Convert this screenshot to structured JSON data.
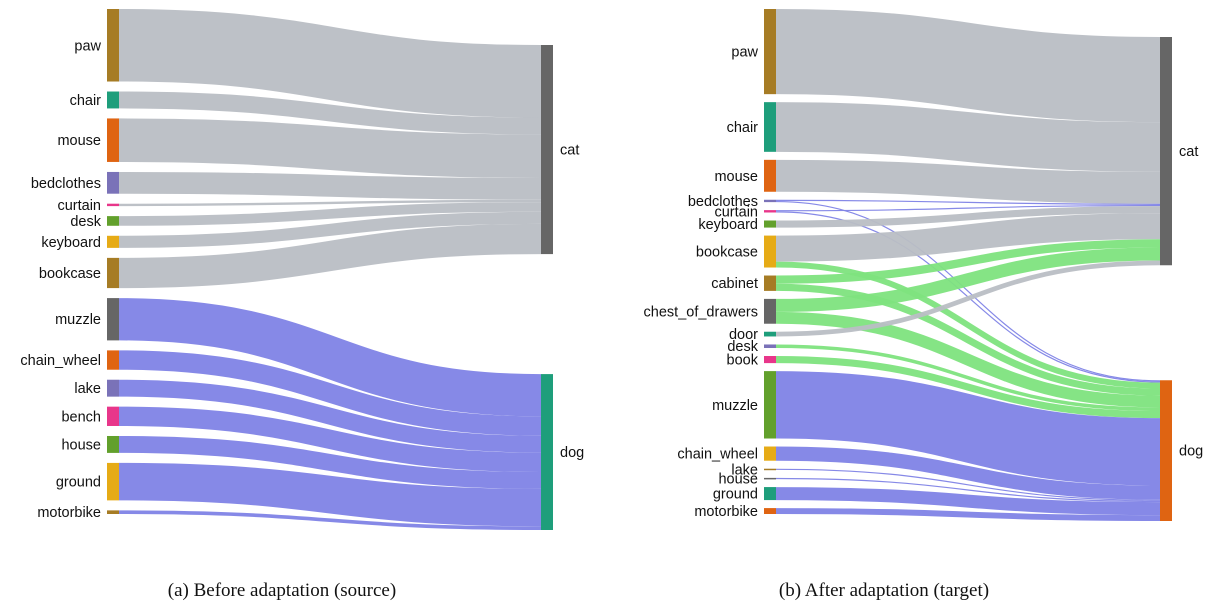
{
  "panels": [
    {
      "caption": "(a) Before adaptation (source)",
      "sources": [
        {
          "label": "paw",
          "color": "#a67c25"
        },
        {
          "label": "chair",
          "color": "#1e9e7b"
        },
        {
          "label": "mouse",
          "color": "#df6412"
        },
        {
          "label": "bedclothes",
          "color": "#7a72b8"
        },
        {
          "label": "curtain",
          "color": "#e8368a"
        },
        {
          "label": "desk",
          "color": "#62a02c"
        },
        {
          "label": "keyboard",
          "color": "#e6ab16"
        },
        {
          "label": "bookcase",
          "color": "#a67c25"
        },
        {
          "label": "muzzle",
          "color": "#666666"
        },
        {
          "label": "chain_wheel",
          "color": "#df6412"
        },
        {
          "label": "lake",
          "color": "#7a72b8"
        },
        {
          "label": "bench",
          "color": "#e8368a"
        },
        {
          "label": "house",
          "color": "#62a02c"
        },
        {
          "label": "ground",
          "color": "#e6ab16"
        },
        {
          "label": "motorbike",
          "color": "#a67c25"
        }
      ],
      "targets": [
        {
          "label": "cat",
          "color": "#666666"
        },
        {
          "label": "dog",
          "color": "#1e9e7b"
        }
      ],
      "links": [
        {
          "source": "paw",
          "target": "cat",
          "value": 60
        },
        {
          "source": "chair",
          "target": "cat",
          "value": 14
        },
        {
          "source": "mouse",
          "target": "cat",
          "value": 36
        },
        {
          "source": "bedclothes",
          "target": "cat",
          "value": 18
        },
        {
          "source": "curtain",
          "target": "cat",
          "value": 2
        },
        {
          "source": "desk",
          "target": "cat",
          "value": 8
        },
        {
          "source": "keyboard",
          "target": "cat",
          "value": 10
        },
        {
          "source": "bookcase",
          "target": "cat",
          "value": 25
        },
        {
          "source": "muzzle",
          "target": "dog",
          "value": 35
        },
        {
          "source": "chain_wheel",
          "target": "dog",
          "value": 16
        },
        {
          "source": "lake",
          "target": "dog",
          "value": 14
        },
        {
          "source": "bench",
          "target": "dog",
          "value": 16
        },
        {
          "source": "house",
          "target": "dog",
          "value": 14
        },
        {
          "source": "ground",
          "target": "dog",
          "value": 31
        },
        {
          "source": "motorbike",
          "target": "dog",
          "value": 3
        }
      ]
    },
    {
      "caption": "(b) After adaptation (target)",
      "sources": [
        {
          "label": "paw",
          "color": "#a67c25"
        },
        {
          "label": "chair",
          "color": "#1e9e7b"
        },
        {
          "label": "mouse",
          "color": "#df6412"
        },
        {
          "label": "bedclothes",
          "color": "#7a72b8"
        },
        {
          "label": "curtain",
          "color": "#e8368a"
        },
        {
          "label": "keyboard",
          "color": "#62a02c"
        },
        {
          "label": "bookcase",
          "color": "#e6ab16"
        },
        {
          "label": "cabinet",
          "color": "#a67c25"
        },
        {
          "label": "chest_of_drawers",
          "color": "#666666"
        },
        {
          "label": "door",
          "color": "#1e9e7b"
        },
        {
          "label": "desk",
          "color": "#7a72b8"
        },
        {
          "label": "book",
          "color": "#e8368a"
        },
        {
          "label": "muzzle",
          "color": "#62a02c"
        },
        {
          "label": "chain_wheel",
          "color": "#e6ab16"
        },
        {
          "label": "lake",
          "color": "#a67c25"
        },
        {
          "label": "house",
          "color": "#666666"
        },
        {
          "label": "ground",
          "color": "#1e9e7b"
        },
        {
          "label": "motorbike",
          "color": "#df6412"
        }
      ],
      "targets": [
        {
          "label": "cat",
          "color": "#666666"
        },
        {
          "label": "dog",
          "color": "#df6412"
        }
      ],
      "links": [
        {
          "source": "paw",
          "target": "cat",
          "value": 72
        },
        {
          "source": "chair",
          "target": "cat",
          "value": 42
        },
        {
          "source": "mouse",
          "target": "cat",
          "value": 27
        },
        {
          "source": "bedclothes",
          "target": "cat",
          "value": 1
        },
        {
          "source": "bedclothes",
          "target": "dog",
          "value": 1
        },
        {
          "source": "curtain",
          "target": "cat",
          "value": 1
        },
        {
          "source": "curtain",
          "target": "dog",
          "value": 1
        },
        {
          "source": "keyboard",
          "target": "cat",
          "value": 6
        },
        {
          "source": "bookcase",
          "target": "cat",
          "value": 22
        },
        {
          "source": "bookcase",
          "target": "dog",
          "value": 5
        },
        {
          "source": "cabinet",
          "target": "cat",
          "value": 7
        },
        {
          "source": "cabinet",
          "target": "dog",
          "value": 6
        },
        {
          "source": "chest_of_drawers",
          "target": "cat",
          "value": 11
        },
        {
          "source": "chest_of_drawers",
          "target": "dog",
          "value": 10
        },
        {
          "source": "door",
          "target": "cat",
          "value": 4
        },
        {
          "source": "desk",
          "target": "dog",
          "value": 3
        },
        {
          "source": "book",
          "target": "dog",
          "value": 6
        },
        {
          "source": "muzzle",
          "target": "dog",
          "value": 57
        },
        {
          "source": "chain_wheel",
          "target": "dog",
          "value": 12
        },
        {
          "source": "lake",
          "target": "dog",
          "value": 1
        },
        {
          "source": "house",
          "target": "dog",
          "value": 1
        },
        {
          "source": "ground",
          "target": "dog",
          "value": 11
        },
        {
          "source": "motorbike",
          "target": "dog",
          "value": 5
        }
      ]
    }
  ],
  "link_colors": {
    "cat": "#b9bec4",
    "dog": "#7f83e6",
    "cross": "#7ee37e"
  }
}
